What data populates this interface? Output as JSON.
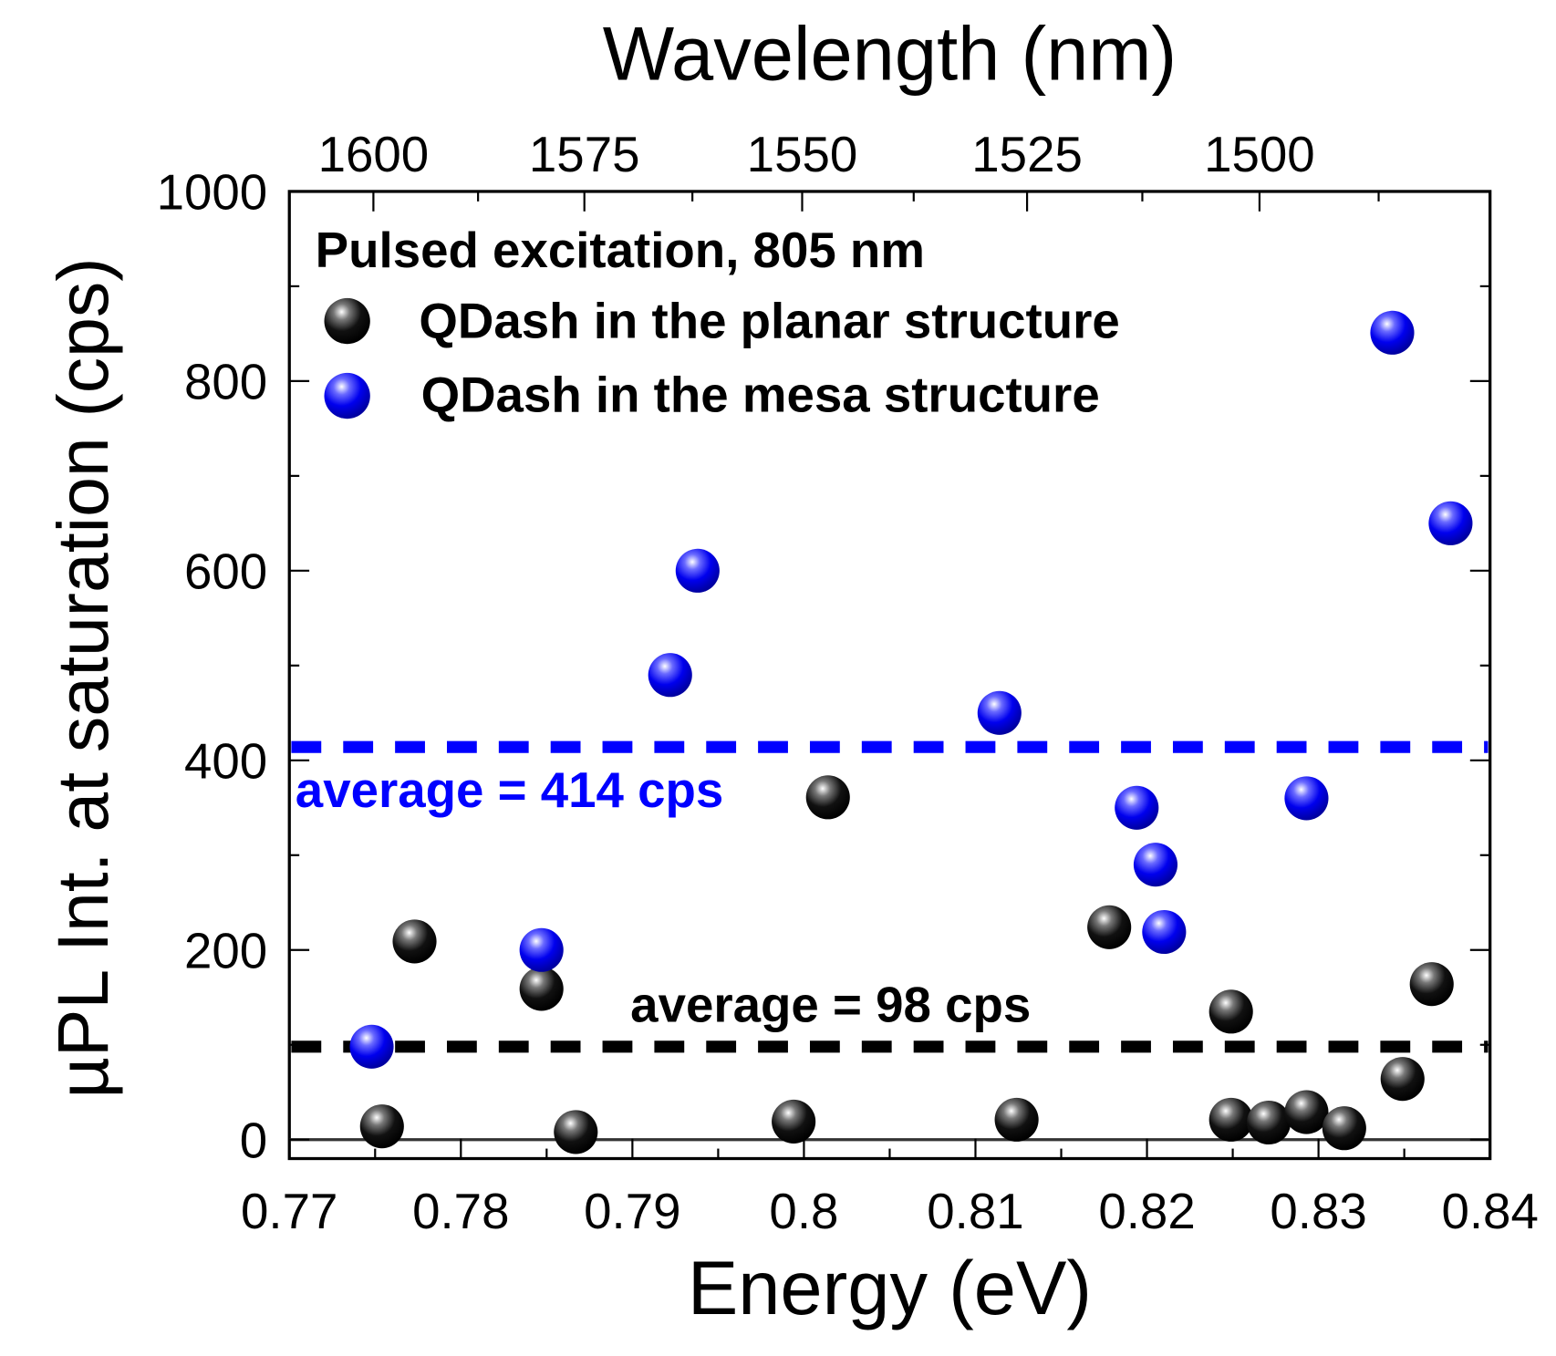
{
  "chart_data": {
    "type": "scatter",
    "title": "",
    "xlabel": "Energy (eV)",
    "x2label": "Wavelength (nm)",
    "ylabel": "µPL Int. at saturation (cps)",
    "xlim": [
      0.77,
      0.84
    ],
    "ylim": [
      -20,
      1000
    ],
    "xticks": [
      0.77,
      0.78,
      0.79,
      0.8,
      0.81,
      0.82,
      0.83,
      0.84
    ],
    "xtick_labels": [
      "0.77",
      "0.78",
      "0.79",
      "0.8",
      "0.81",
      "0.82",
      "0.83",
      "0.84"
    ],
    "yticks": [
      0,
      200,
      400,
      600,
      800,
      1000
    ],
    "ytick_labels": [
      "0",
      "200",
      "400",
      "600",
      "800",
      "1000"
    ],
    "x2ticks": [
      1600,
      1575,
      1550,
      1525,
      1500
    ],
    "x2tick_labels": [
      "1600",
      "1575",
      "1550",
      "1525",
      "1500"
    ],
    "grid": false,
    "legend": {
      "placement": "top-left",
      "header": "Pulsed excitation, 805 nm",
      "entries": [
        "QDash in the planar structure",
        "QDash in the mesa structure"
      ]
    },
    "series": [
      {
        "name": "QDash in the planar structure",
        "color": "#000000",
        "x": [
          0.7754,
          0.7773,
          0.7847,
          0.7867,
          0.7994,
          0.8014,
          0.8124,
          0.8178,
          0.8249,
          0.8249,
          0.8271,
          0.8293,
          0.8315,
          0.8349,
          0.8366
        ],
        "y": [
          14,
          209,
          159,
          8,
          19,
          361,
          21,
          224,
          135,
          21,
          18,
          29,
          12,
          64,
          164
        ]
      },
      {
        "name": "QDash in the mesa structure",
        "color": "#0000ff",
        "x": [
          0.7748,
          0.7847,
          0.7922,
          0.7938,
          0.8114,
          0.8194,
          0.8205,
          0.821,
          0.8293,
          0.8343,
          0.8377
        ],
        "y": [
          98,
          200,
          490,
          600,
          450,
          350,
          290,
          219,
          360,
          851,
          650
        ]
      }
    ],
    "reference_lines": [
      {
        "name": "mesa-average",
        "y": 414,
        "color": "#0000ff",
        "label": "average = 414 cps"
      },
      {
        "name": "planar-average",
        "y": 98,
        "color": "#000000",
        "label": "average = 98 cps"
      }
    ]
  }
}
